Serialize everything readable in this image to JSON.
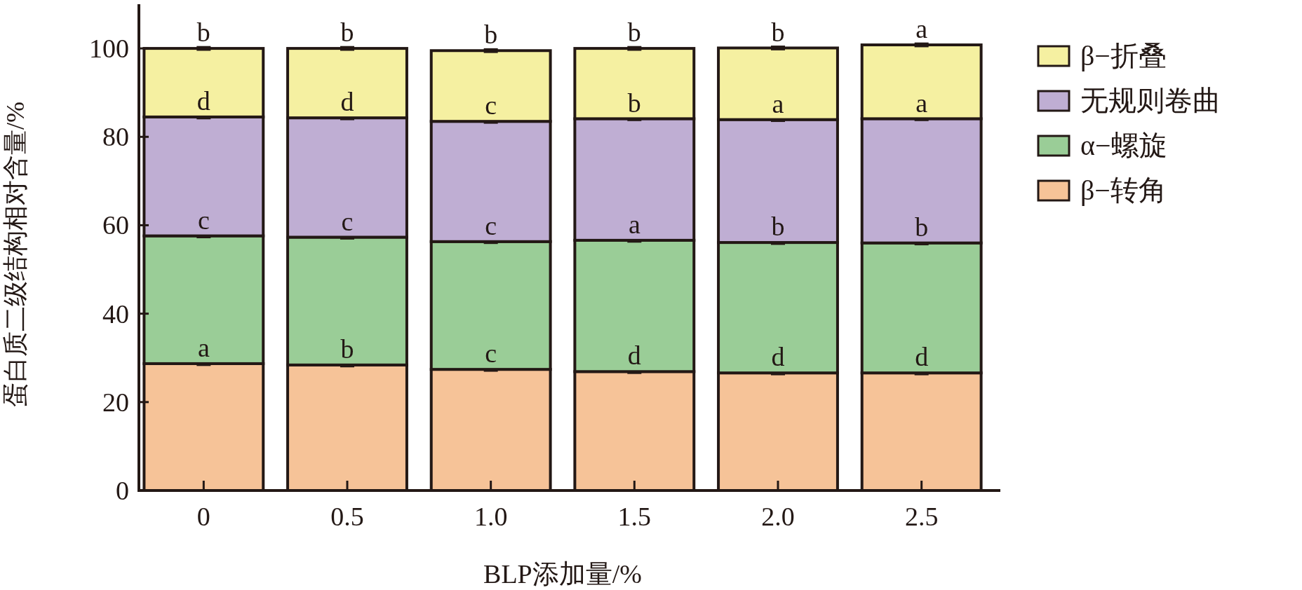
{
  "chart_data": {
    "type": "bar",
    "stacked": true,
    "xlabel": "BLP添加量/%",
    "ylabel": "蛋白质二级结构相对含量/%",
    "categories": [
      "0",
      "0.5",
      "1.0",
      "1.5",
      "2.0",
      "2.5"
    ],
    "series": [
      {
        "name": "β−转角",
        "color": "#f6c398",
        "values": [
          28.7,
          28.4,
          27.4,
          26.9,
          26.6,
          26.6
        ],
        "errors": [
          0.3,
          0.3,
          0.3,
          0.3,
          0.3,
          0.3
        ],
        "value_labels": [
          "a",
          "b",
          "c",
          "d",
          "d",
          "d"
        ]
      },
      {
        "name": "α−螺旋",
        "color": "#9acd97",
        "values": [
          28.9,
          28.9,
          28.9,
          29.7,
          29.5,
          29.4
        ],
        "errors": [
          0.3,
          0.3,
          0.3,
          0.3,
          0.3,
          0.3
        ],
        "value_labels": [
          "c",
          "c",
          "c",
          "a",
          "b",
          "b"
        ]
      },
      {
        "name": "无规则卷曲",
        "color": "#bfaed3",
        "values": [
          26.9,
          27.0,
          27.2,
          27.5,
          27.8,
          28.1
        ],
        "errors": [
          0.3,
          0.3,
          0.3,
          0.3,
          0.3,
          0.3
        ],
        "value_labels": [
          "d",
          "d",
          "c",
          "b",
          "a",
          "a"
        ]
      },
      {
        "name": "β−折叠",
        "color": "#f5f0a1",
        "values": [
          15.5,
          15.7,
          16.0,
          15.9,
          16.2,
          16.7
        ],
        "errors": [
          0.3,
          0.3,
          0.3,
          0.3,
          0.3,
          0.3
        ],
        "value_labels": [
          "b",
          "b",
          "b",
          "b",
          "b",
          "a"
        ]
      }
    ],
    "ylim": [
      0,
      110
    ],
    "yticks": [
      0,
      20,
      40,
      60,
      80,
      100
    ],
    "legend": "right",
    "grid": false
  }
}
